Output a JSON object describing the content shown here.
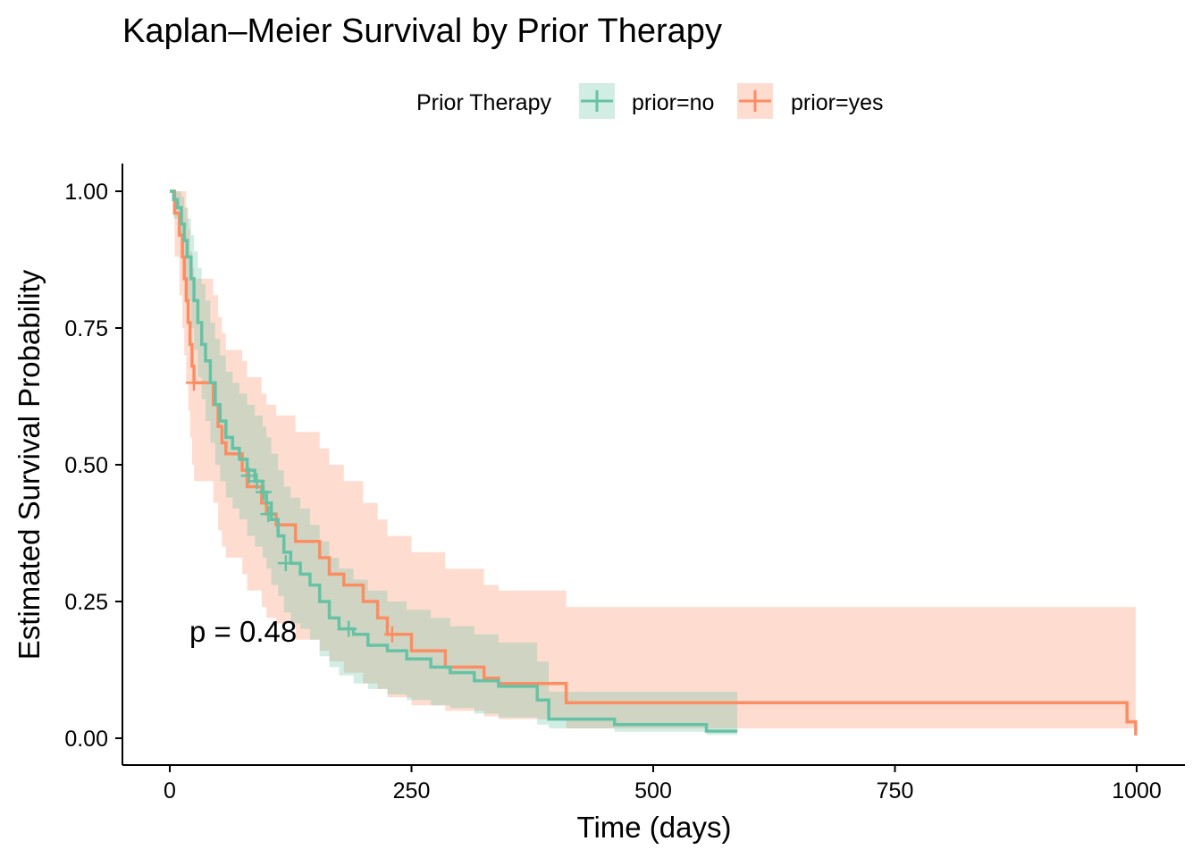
{
  "chart_data": {
    "type": "line",
    "title": "Kaplan–Meier Survival by Prior Therapy",
    "xlabel": "Time (days)",
    "ylabel": "Estimated Survival Probability",
    "xlim": [
      0,
      1000
    ],
    "ylim": [
      0,
      1
    ],
    "x_ticks": [
      "0",
      "250",
      "500",
      "750",
      "1000"
    ],
    "y_ticks": [
      "0.00",
      "0.25",
      "0.50",
      "0.75",
      "1.00"
    ],
    "grid": false,
    "legend": {
      "title": "Prior Therapy",
      "position": "top"
    },
    "annotation": "p = 0.48",
    "series": [
      {
        "name": "prior=no",
        "color": "#66C2A5",
        "steps": [
          [
            0,
            1.0
          ],
          [
            4,
            0.985
          ],
          [
            8,
            0.97
          ],
          [
            12,
            0.94
          ],
          [
            15,
            0.91
          ],
          [
            18,
            0.88
          ],
          [
            22,
            0.84
          ],
          [
            25,
            0.8
          ],
          [
            29,
            0.76
          ],
          [
            33,
            0.72
          ],
          [
            37,
            0.69
          ],
          [
            42,
            0.65
          ],
          [
            47,
            0.61
          ],
          [
            52,
            0.58
          ],
          [
            58,
            0.55
          ],
          [
            65,
            0.53
          ],
          [
            72,
            0.51
          ],
          [
            80,
            0.49
          ],
          [
            88,
            0.47
          ],
          [
            96,
            0.45
          ],
          [
            100,
            0.43
          ],
          [
            105,
            0.4
          ],
          [
            112,
            0.37
          ],
          [
            118,
            0.34
          ],
          [
            125,
            0.32
          ],
          [
            135,
            0.3
          ],
          [
            145,
            0.28
          ],
          [
            155,
            0.25
          ],
          [
            165,
            0.22
          ],
          [
            175,
            0.2
          ],
          [
            190,
            0.19
          ],
          [
            205,
            0.17
          ],
          [
            225,
            0.16
          ],
          [
            245,
            0.145
          ],
          [
            270,
            0.13
          ],
          [
            290,
            0.12
          ],
          [
            315,
            0.105
          ],
          [
            340,
            0.095
          ],
          [
            380,
            0.07
          ],
          [
            392,
            0.035
          ],
          [
            460,
            0.025
          ],
          [
            555,
            0.013
          ],
          [
            587,
            0.013
          ]
        ],
        "censored": [
          [
            82,
            0.48
          ],
          [
            90,
            0.47
          ],
          [
            97,
            0.45
          ],
          [
            102,
            0.41
          ],
          [
            120,
            0.32
          ],
          [
            185,
            0.2
          ]
        ],
        "ci_lower": [
          [
            0,
            1.0
          ],
          [
            4,
            0.95
          ],
          [
            8,
            0.92
          ],
          [
            12,
            0.88
          ],
          [
            15,
            0.84
          ],
          [
            18,
            0.8
          ],
          [
            22,
            0.75
          ],
          [
            25,
            0.71
          ],
          [
            29,
            0.66
          ],
          [
            33,
            0.62
          ],
          [
            37,
            0.58
          ],
          [
            42,
            0.54
          ],
          [
            47,
            0.5
          ],
          [
            52,
            0.47
          ],
          [
            58,
            0.44
          ],
          [
            65,
            0.42
          ],
          [
            72,
            0.4
          ],
          [
            80,
            0.37
          ],
          [
            88,
            0.35
          ],
          [
            96,
            0.33
          ],
          [
            100,
            0.31
          ],
          [
            105,
            0.28
          ],
          [
            112,
            0.26
          ],
          [
            118,
            0.23
          ],
          [
            125,
            0.21
          ],
          [
            135,
            0.2
          ],
          [
            145,
            0.18
          ],
          [
            155,
            0.15
          ],
          [
            165,
            0.13
          ],
          [
            175,
            0.115
          ],
          [
            190,
            0.1
          ],
          [
            205,
            0.09
          ],
          [
            225,
            0.08
          ],
          [
            245,
            0.07
          ],
          [
            270,
            0.06
          ],
          [
            290,
            0.055
          ],
          [
            315,
            0.045
          ],
          [
            340,
            0.038
          ],
          [
            380,
            0.025
          ],
          [
            392,
            0.018
          ],
          [
            460,
            0.012
          ],
          [
            555,
            0.006
          ],
          [
            587,
            0.006
          ]
        ],
        "ci_upper": [
          [
            0,
            1.0
          ],
          [
            4,
            1.0
          ],
          [
            8,
            1.0
          ],
          [
            12,
            0.99
          ],
          [
            15,
            0.97
          ],
          [
            18,
            0.95
          ],
          [
            22,
            0.92
          ],
          [
            25,
            0.89
          ],
          [
            29,
            0.86
          ],
          [
            33,
            0.83
          ],
          [
            37,
            0.8
          ],
          [
            42,
            0.76
          ],
          [
            47,
            0.73
          ],
          [
            52,
            0.7
          ],
          [
            58,
            0.67
          ],
          [
            65,
            0.65
          ],
          [
            72,
            0.63
          ],
          [
            80,
            0.61
          ],
          [
            88,
            0.59
          ],
          [
            96,
            0.57
          ],
          [
            100,
            0.55
          ],
          [
            105,
            0.52
          ],
          [
            112,
            0.49
          ],
          [
            118,
            0.46
          ],
          [
            125,
            0.44
          ],
          [
            135,
            0.42
          ],
          [
            145,
            0.39
          ],
          [
            155,
            0.36
          ],
          [
            165,
            0.33
          ],
          [
            175,
            0.31
          ],
          [
            190,
            0.29
          ],
          [
            205,
            0.27
          ],
          [
            225,
            0.25
          ],
          [
            245,
            0.235
          ],
          [
            270,
            0.22
          ],
          [
            290,
            0.205
          ],
          [
            315,
            0.19
          ],
          [
            340,
            0.175
          ],
          [
            380,
            0.14
          ],
          [
            392,
            0.085
          ],
          [
            460,
            0.085
          ],
          [
            555,
            0.085
          ],
          [
            587,
            0.085
          ]
        ]
      },
      {
        "name": "prior=yes",
        "color": "#FC8D62",
        "steps": [
          [
            0,
            1.0
          ],
          [
            5,
            0.96
          ],
          [
            10,
            0.92
          ],
          [
            13,
            0.88
          ],
          [
            15,
            0.84
          ],
          [
            17,
            0.8
          ],
          [
            19,
            0.76
          ],
          [
            21,
            0.72
          ],
          [
            23,
            0.68
          ],
          [
            25,
            0.65
          ],
          [
            45,
            0.61
          ],
          [
            50,
            0.57
          ],
          [
            54,
            0.54
          ],
          [
            58,
            0.52
          ],
          [
            75,
            0.49
          ],
          [
            80,
            0.46
          ],
          [
            95,
            0.43
          ],
          [
            100,
            0.41
          ],
          [
            110,
            0.39
          ],
          [
            130,
            0.36
          ],
          [
            155,
            0.33
          ],
          [
            165,
            0.3
          ],
          [
            180,
            0.28
          ],
          [
            200,
            0.25
          ],
          [
            215,
            0.22
          ],
          [
            225,
            0.19
          ],
          [
            250,
            0.16
          ],
          [
            285,
            0.13
          ],
          [
            325,
            0.11
          ],
          [
            340,
            0.1
          ],
          [
            410,
            0.065
          ],
          [
            990,
            0.03
          ],
          [
            999,
            0.005
          ]
        ],
        "censored": [
          [
            25,
            0.65
          ],
          [
            230,
            0.19
          ]
        ],
        "ci_lower": [
          [
            0,
            1.0
          ],
          [
            5,
            0.88
          ],
          [
            10,
            0.81
          ],
          [
            13,
            0.75
          ],
          [
            15,
            0.7
          ],
          [
            17,
            0.65
          ],
          [
            19,
            0.6
          ],
          [
            21,
            0.55
          ],
          [
            23,
            0.5
          ],
          [
            25,
            0.47
          ],
          [
            45,
            0.43
          ],
          [
            50,
            0.38
          ],
          [
            54,
            0.35
          ],
          [
            58,
            0.33
          ],
          [
            75,
            0.3
          ],
          [
            80,
            0.27
          ],
          [
            95,
            0.24
          ],
          [
            100,
            0.22
          ],
          [
            110,
            0.21
          ],
          [
            130,
            0.18
          ],
          [
            155,
            0.16
          ],
          [
            165,
            0.14
          ],
          [
            180,
            0.12
          ],
          [
            200,
            0.1
          ],
          [
            215,
            0.09
          ],
          [
            225,
            0.075
          ],
          [
            250,
            0.06
          ],
          [
            285,
            0.05
          ],
          [
            325,
            0.04
          ],
          [
            340,
            0.035
          ],
          [
            410,
            0.018
          ],
          [
            990,
            0.018
          ],
          [
            999,
            0.018
          ]
        ],
        "ci_upper": [
          [
            0,
            1.0
          ],
          [
            5,
            1.0
          ],
          [
            10,
            1.0
          ],
          [
            13,
            1.0
          ],
          [
            15,
            1.0
          ],
          [
            17,
            0.97
          ],
          [
            19,
            0.93
          ],
          [
            21,
            0.89
          ],
          [
            23,
            0.86
          ],
          [
            25,
            0.84
          ],
          [
            45,
            0.81
          ],
          [
            50,
            0.77
          ],
          [
            54,
            0.74
          ],
          [
            58,
            0.71
          ],
          [
            75,
            0.69
          ],
          [
            80,
            0.66
          ],
          [
            95,
            0.63
          ],
          [
            100,
            0.61
          ],
          [
            110,
            0.59
          ],
          [
            130,
            0.56
          ],
          [
            155,
            0.53
          ],
          [
            165,
            0.5
          ],
          [
            180,
            0.47
          ],
          [
            200,
            0.43
          ],
          [
            215,
            0.4
          ],
          [
            225,
            0.37
          ],
          [
            250,
            0.34
          ],
          [
            285,
            0.31
          ],
          [
            325,
            0.28
          ],
          [
            340,
            0.27
          ],
          [
            410,
            0.24
          ],
          [
            990,
            0.24
          ],
          [
            999,
            0.24
          ]
        ]
      }
    ]
  }
}
